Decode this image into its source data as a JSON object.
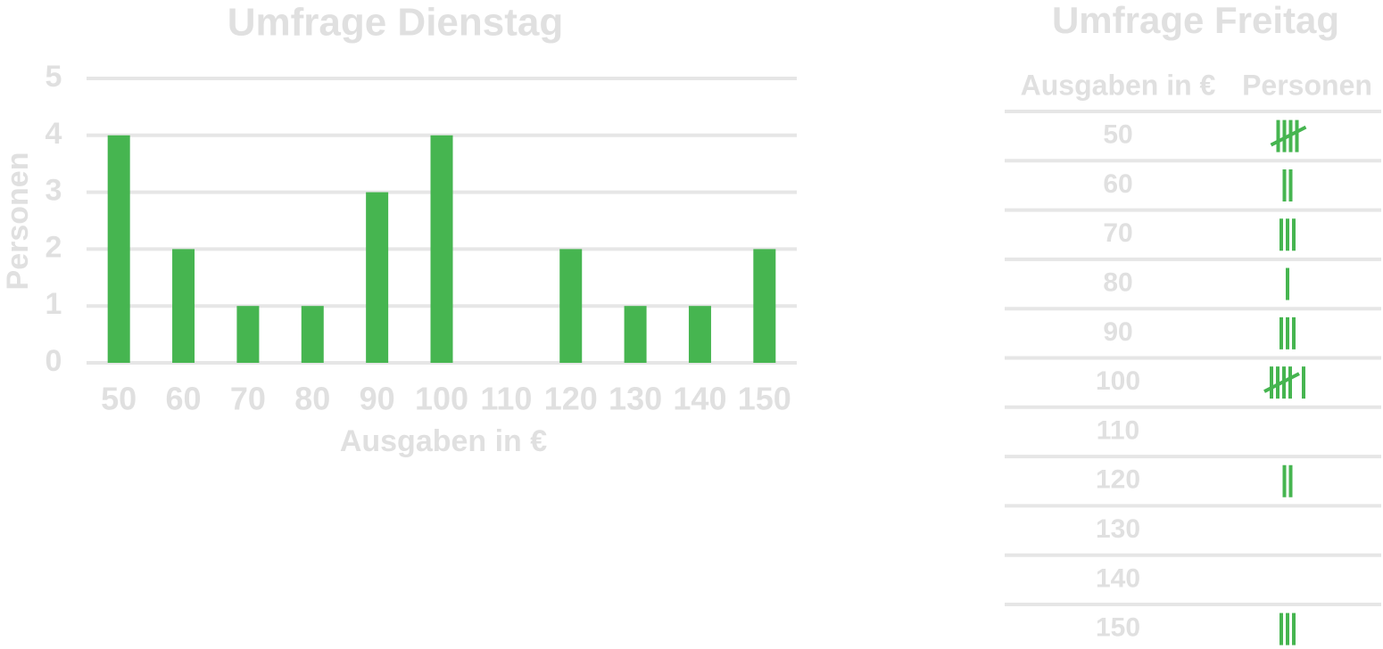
{
  "chart_data": {
    "type": "bar",
    "title": "Umfrage Dienstag",
    "x_label": "Ausgaben in €",
    "y_label": "Personen",
    "categories": [
      "50",
      "60",
      "70",
      "80",
      "90",
      "100",
      "110",
      "120",
      "130",
      "140",
      "150"
    ],
    "values": [
      4,
      2,
      1,
      1,
      3,
      4,
      0,
      2,
      1,
      1,
      2
    ],
    "color": "#46b550",
    "ylim": [
      0,
      5
    ],
    "yticks": [
      0,
      1,
      2,
      3,
      4,
      5
    ],
    "grid": true
  },
  "table": {
    "title": "Umfrage Freitag",
    "columns": [
      "Ausgaben in €",
      "Personen"
    ],
    "tally_color": "#46b550",
    "rows": [
      {
        "label": "50",
        "count": 5
      },
      {
        "label": "60",
        "count": 2
      },
      {
        "label": "70",
        "count": 3
      },
      {
        "label": "80",
        "count": 1
      },
      {
        "label": "90",
        "count": 3
      },
      {
        "label": "100",
        "count": 6
      },
      {
        "label": "110",
        "count": 0
      },
      {
        "label": "120",
        "count": 2
      },
      {
        "label": "130",
        "count": 0
      },
      {
        "label": "140",
        "count": 0
      },
      {
        "label": "150",
        "count": 3
      }
    ]
  }
}
